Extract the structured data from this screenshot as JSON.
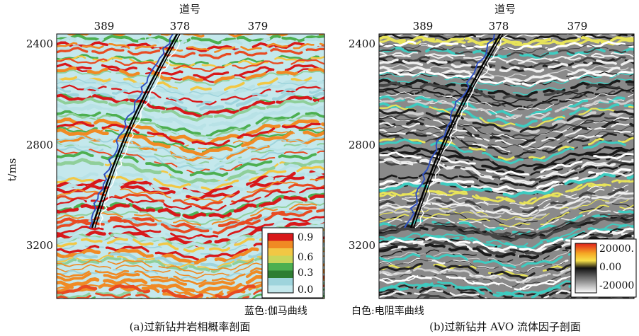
{
  "panel_a": {
    "x_axis_title": "道号",
    "x_ticks": [
      "389",
      "378",
      "379"
    ],
    "y_ticks": [
      "2400",
      "2800",
      "3200"
    ],
    "colorbar_labels": [
      "0.9",
      "0.6",
      "0.3",
      "0.0"
    ],
    "caption": "(a)过新钻井岩相概率剖面"
  },
  "panel_b": {
    "x_axis_title": "道号",
    "x_ticks": [
      "389",
      "378",
      "379"
    ],
    "y_ticks": [
      "2400",
      "2800",
      "3200"
    ],
    "colorbar_labels": [
      "20000.",
      "0.00",
      "-20000"
    ],
    "caption": "(b)过新钻井 AVO 流体因子剖面"
  },
  "y_axis_title": "t/ms",
  "legend": {
    "blue": "蓝色:伽马曲线",
    "white": "白色:电阻率曲线"
  }
}
